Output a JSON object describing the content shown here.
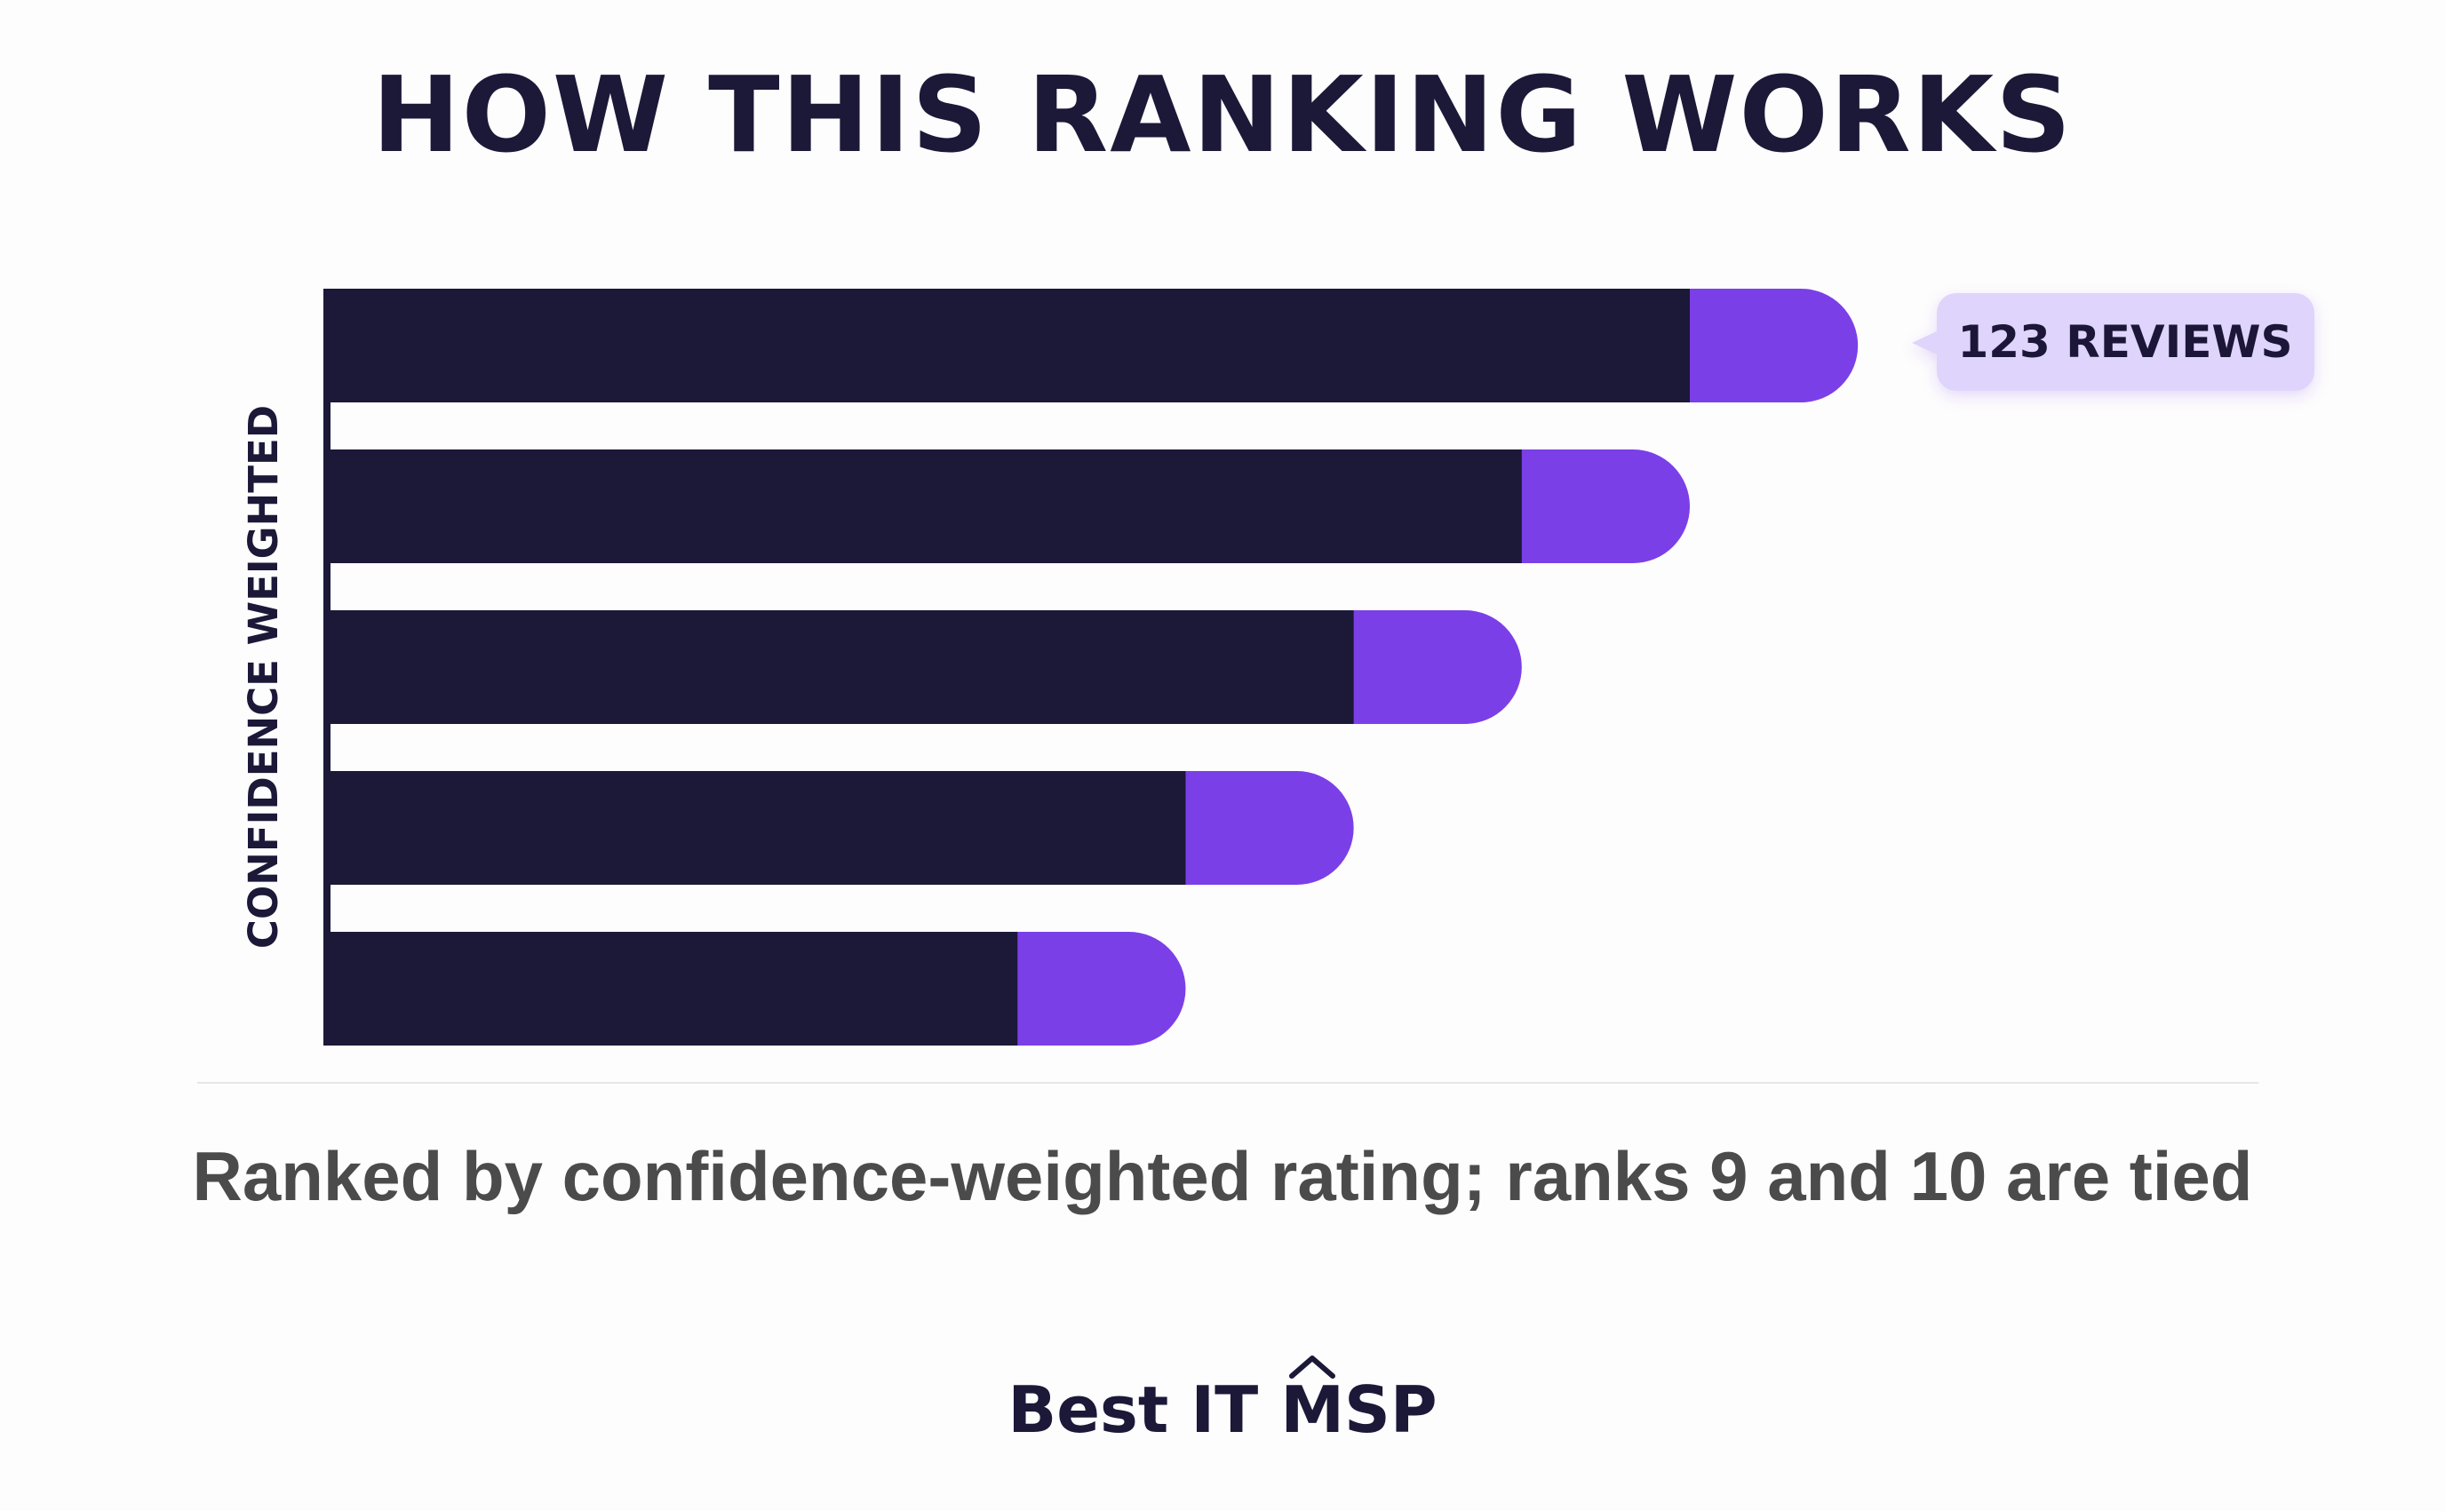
{
  "header": {
    "title": "HOW THIS RANKING WORKS"
  },
  "chart_data": {
    "type": "bar",
    "orientation": "horizontal",
    "ylabel": "CONFIDENCE WEIGHTED",
    "series": [
      {
        "values": [
          100,
          87.7,
          75.4,
          63.1,
          50.8
        ]
      },
      {
        "values": [
          12.3,
          12.3,
          12.3,
          12.3,
          12.3
        ]
      }
    ],
    "callout": "123 REVIEWS",
    "colors": {
      "base": "#1c1838",
      "accent": "#7b3fe8",
      "callout_bg": "#dfd4fb"
    },
    "grid": false
  },
  "caption": "Ranked by confidence-weighted rating; ranks 9 and 10 are tied",
  "footer": {
    "brand_prefix": "Best IT ",
    "brand_m": "M",
    "brand_suffix": "SP"
  }
}
